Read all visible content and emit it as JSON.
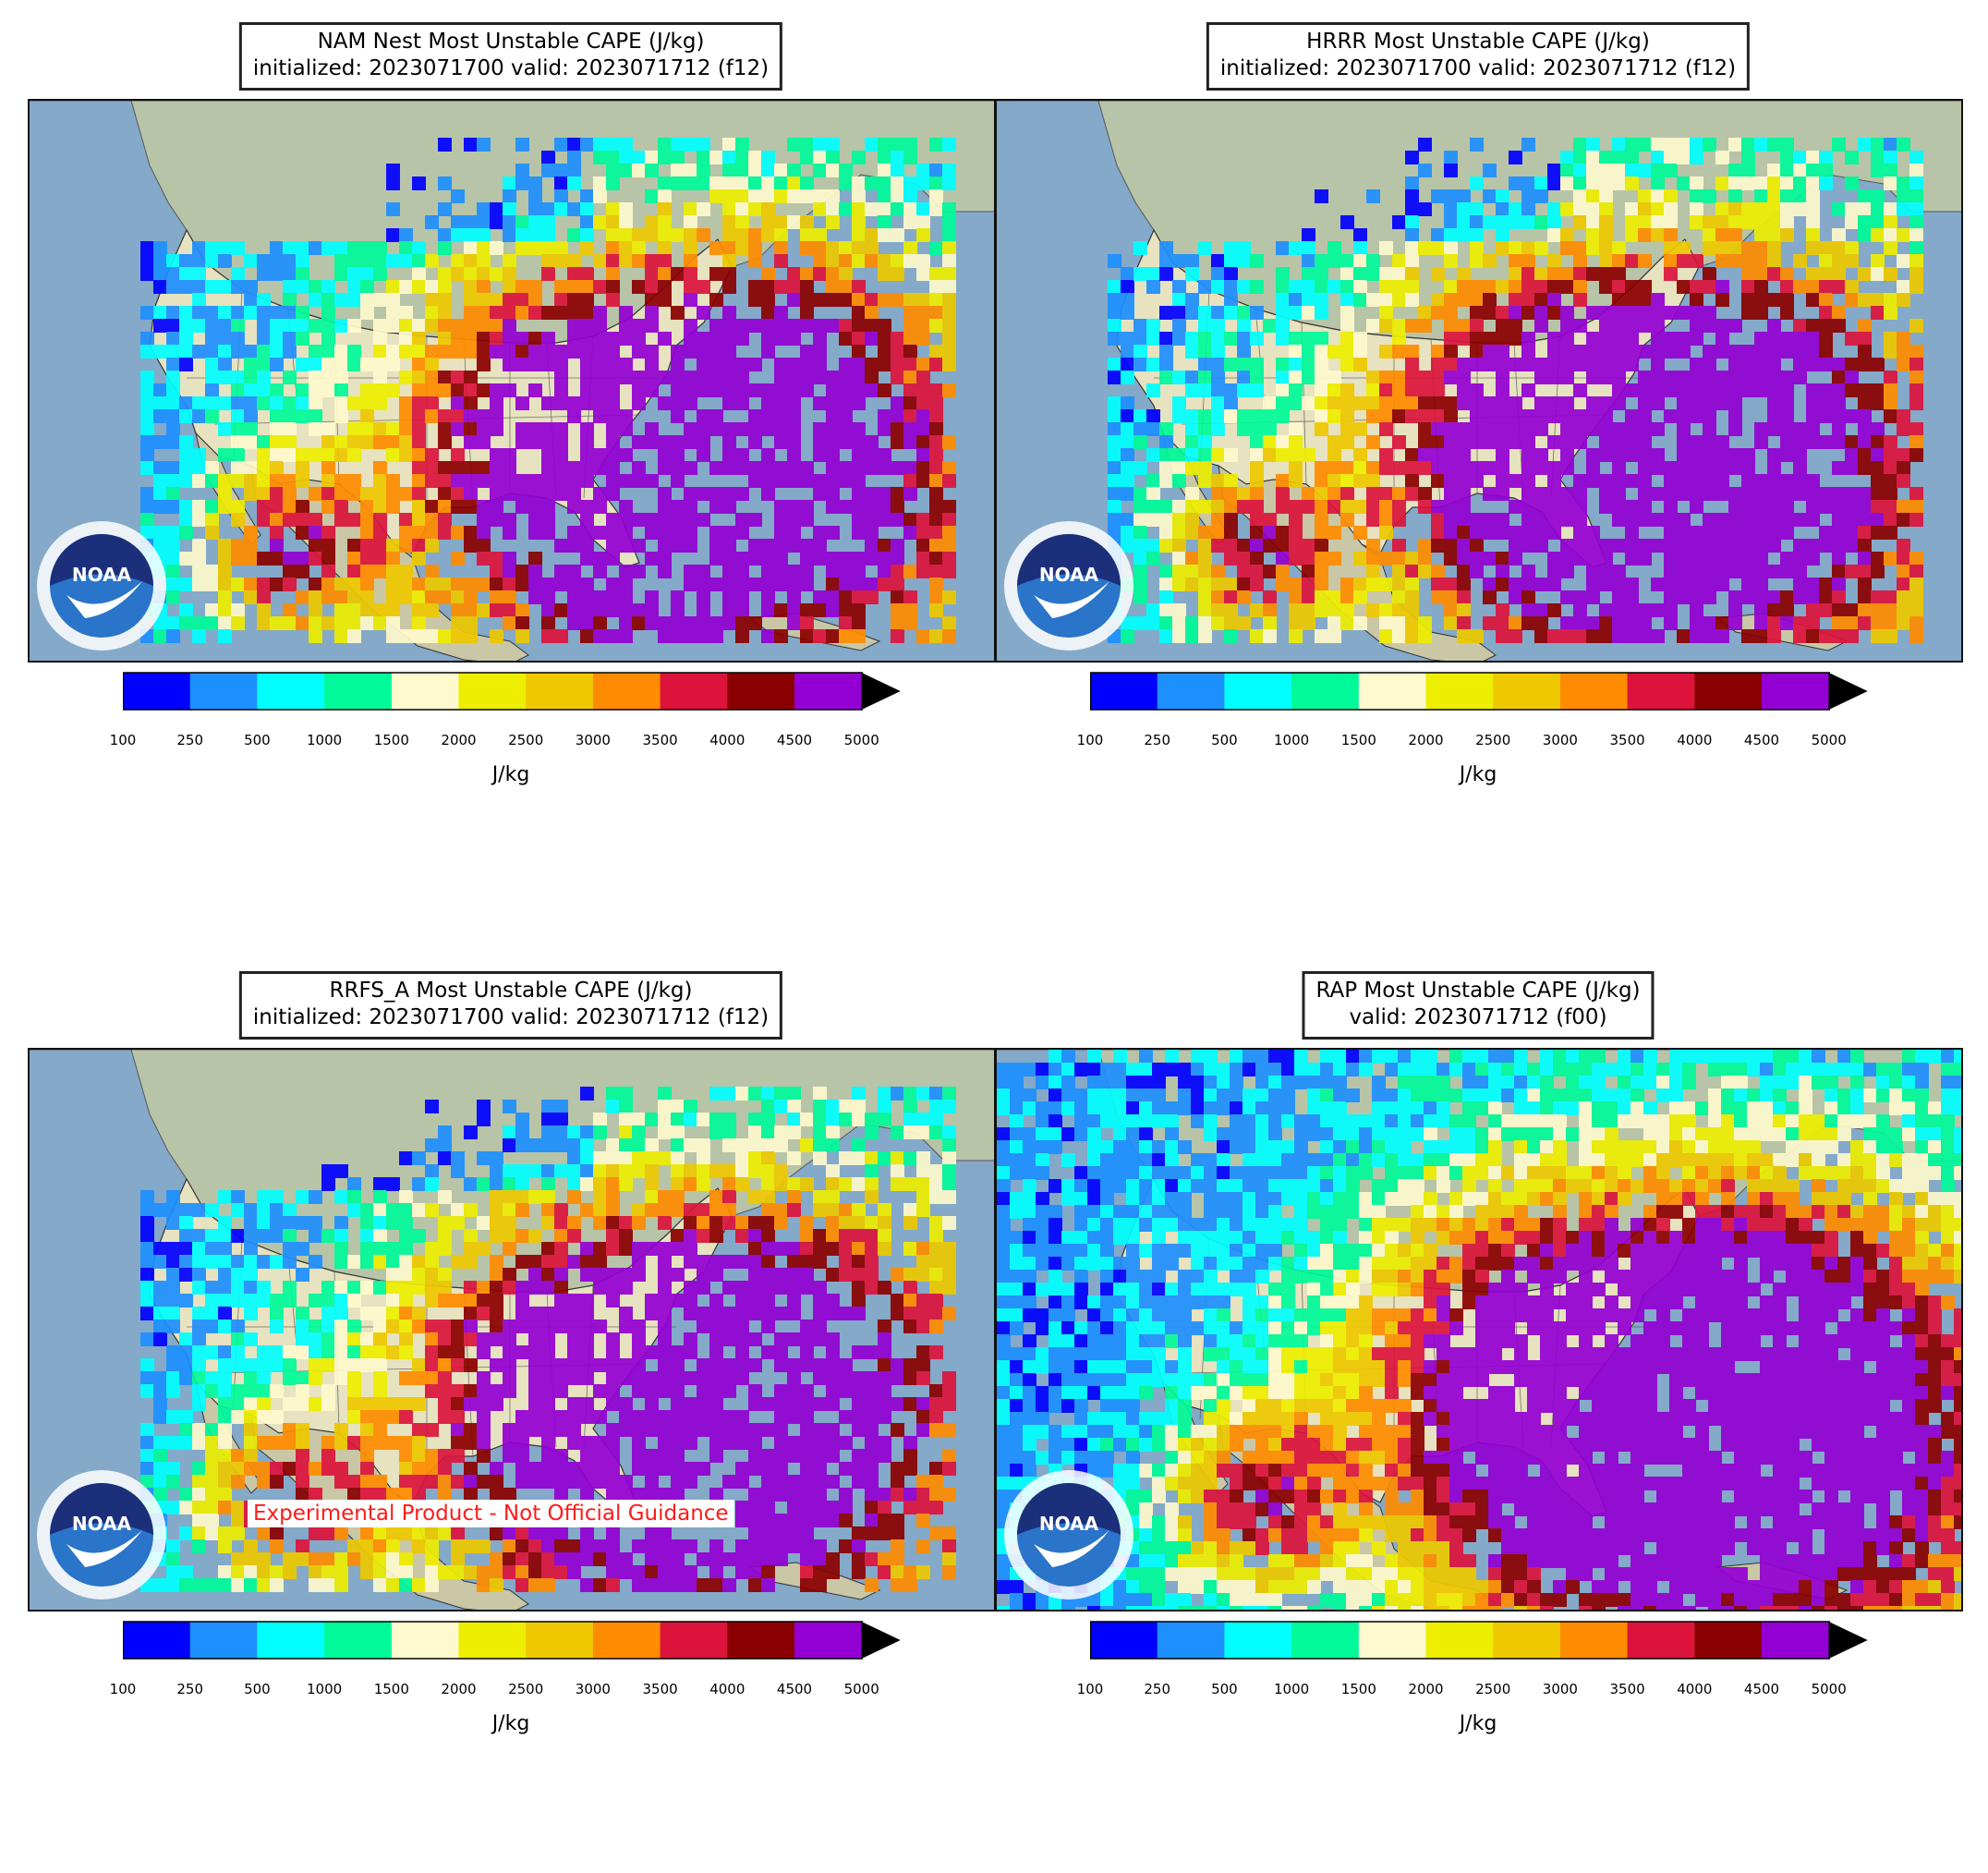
{
  "panels": [
    {
      "id": "nam",
      "title_line1": "NAM Nest Most Unstable CAPE (J/kg)",
      "title_line2": "initialized: 2023071700 valid: 2023071712 (f12)",
      "watermark": ""
    },
    {
      "id": "hrrr",
      "title_line1": "HRRR Most Unstable CAPE (J/kg)",
      "title_line2": "initialized: 2023071700 valid: 2023071712 (f12)",
      "watermark": ""
    },
    {
      "id": "rrfs",
      "title_line1": "RRFS_A Most Unstable CAPE (J/kg)",
      "title_line2": "initialized: 2023071700 valid: 2023071712 (f12)",
      "watermark": "Experimental Product - Not Official Guidance"
    },
    {
      "id": "rap",
      "title_line1": "RAP Most Unstable CAPE (J/kg)",
      "title_line2": "valid: 2023071712 (f00)",
      "watermark": ""
    }
  ],
  "logo": {
    "icon": "noaa-logo-icon",
    "text": "NOAA"
  },
  "colorbar": {
    "unit": "J/kg",
    "ticks": [
      "100",
      "250",
      "500",
      "1000",
      "1500",
      "2000",
      "2500",
      "3000",
      "3500",
      "4000",
      "4500",
      "5000"
    ],
    "colors": [
      "#0000ff",
      "#1e8fff",
      "#00ffff",
      "#00fa9a",
      "#fffacd",
      "#eeee00",
      "#eec900",
      "#ff8c00",
      "#dc143c",
      "#8b0000",
      "#9400d3"
    ],
    "extend_color": "#000000"
  },
  "map_colors": {
    "ocean": "#84a9c9",
    "land": "#e7e2bf",
    "canada": "#b8c4a8",
    "mountain": "#c9c7a6"
  }
}
